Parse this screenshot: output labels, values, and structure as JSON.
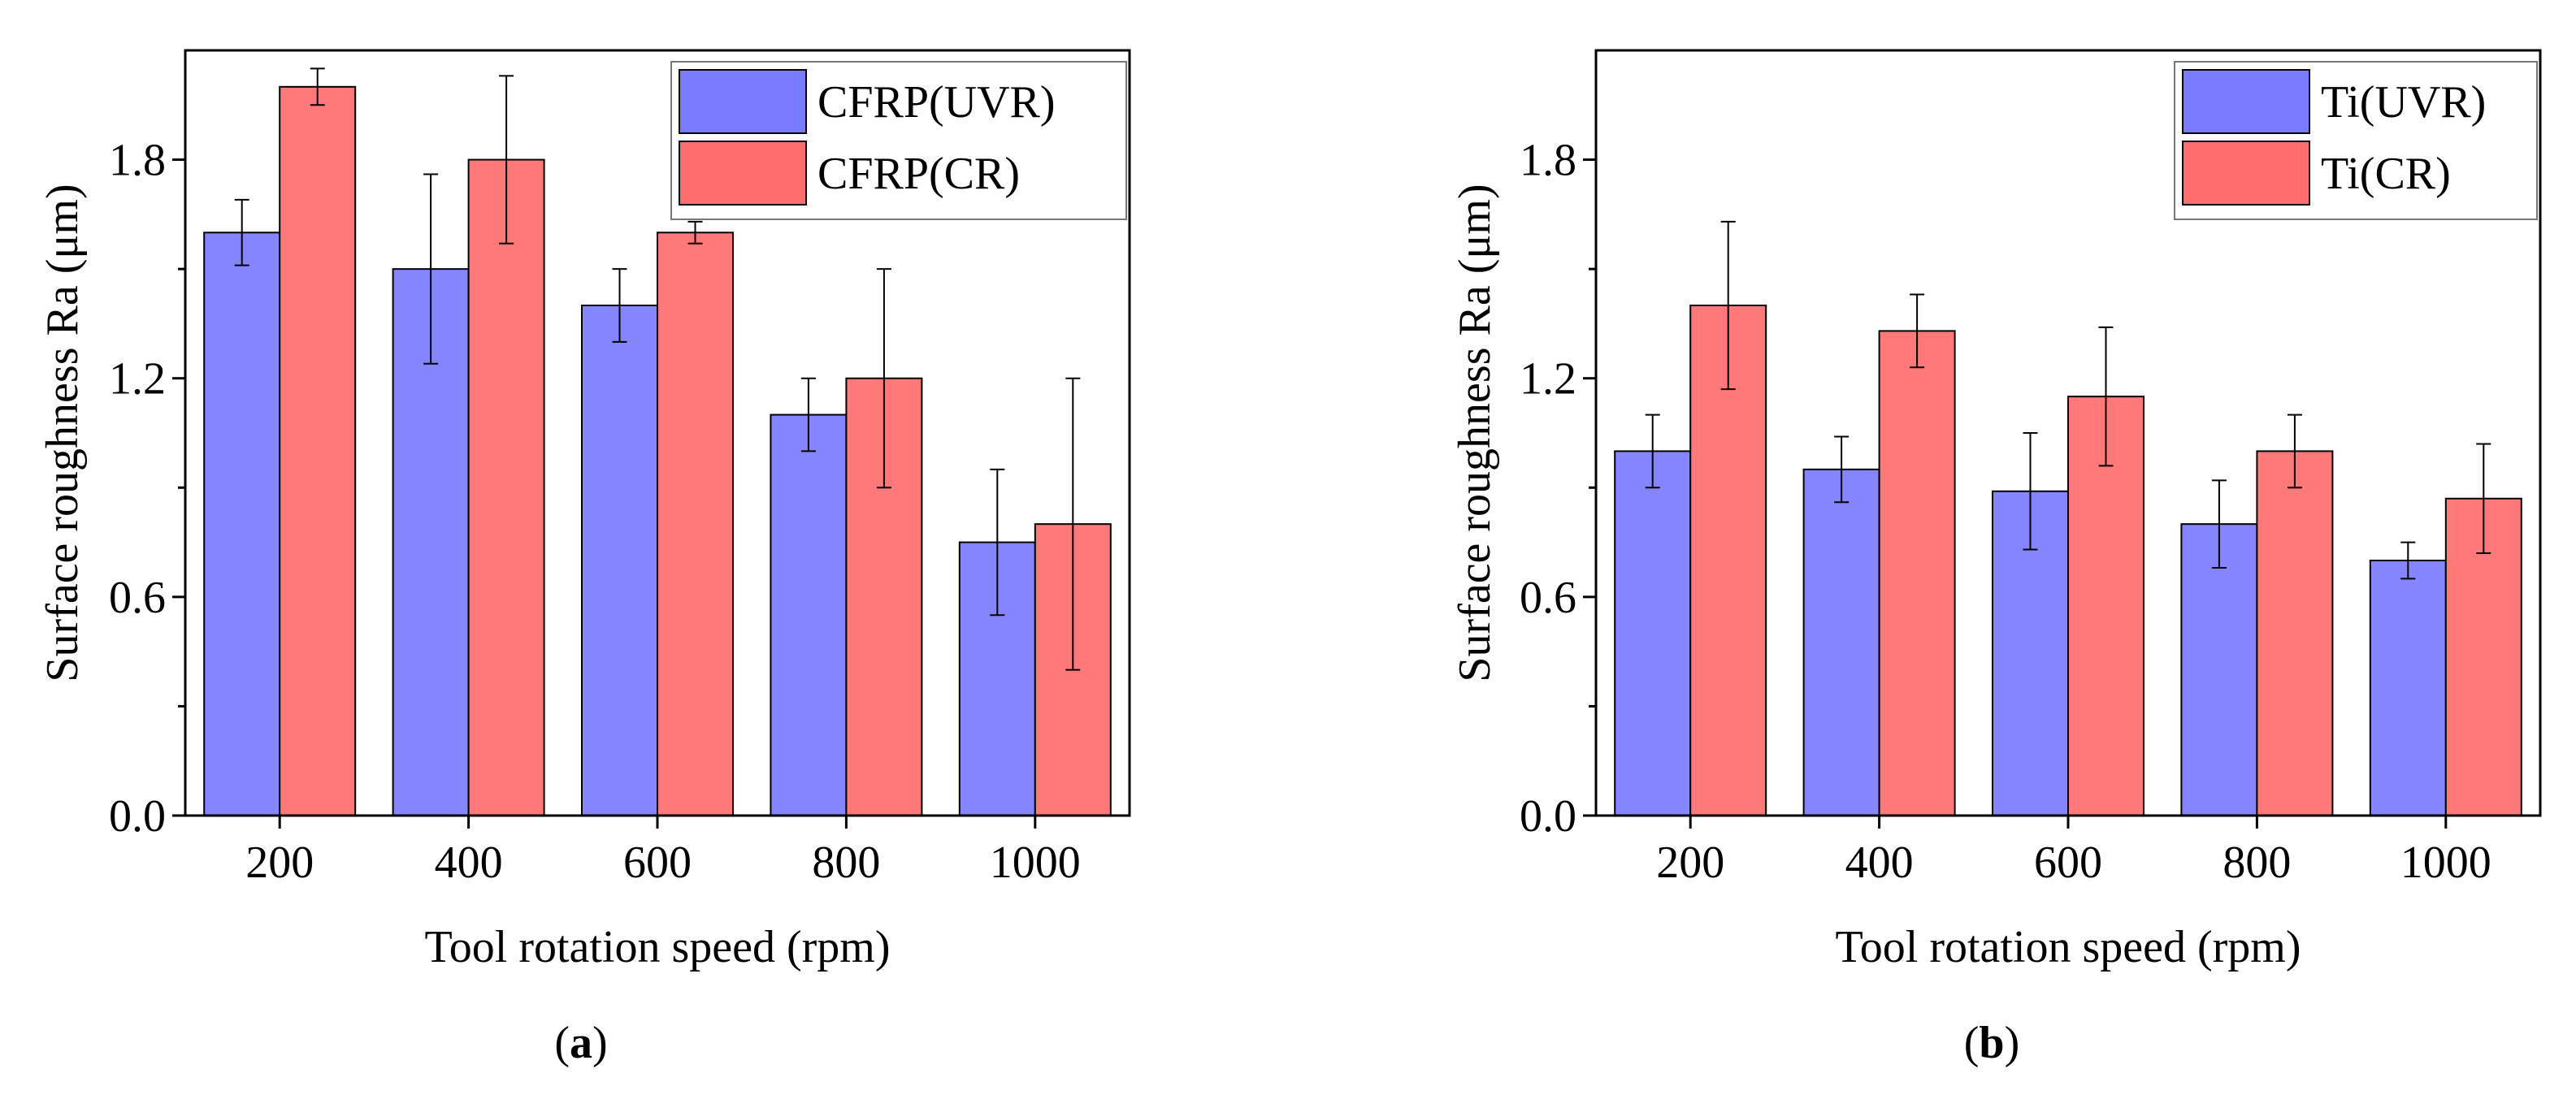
{
  "chart_data": [
    {
      "type": "bar",
      "panel": "(a)",
      "panel_letter": "a",
      "categories": [
        "200",
        "400",
        "600",
        "800",
        "1000"
      ],
      "series": [
        {
          "name": "CFRP(UVR)",
          "color": "#7b7bff",
          "values": [
            1.6,
            1.5,
            1.4,
            1.1,
            0.75
          ],
          "errors": [
            0.09,
            0.26,
            0.1,
            0.1,
            0.2
          ]
        },
        {
          "name": "CFRP(CR)",
          "color": "#ff6e6e",
          "values": [
            2.0,
            1.8,
            1.6,
            1.2,
            0.8
          ],
          "errors": [
            0.05,
            0.23,
            0.03,
            0.3,
            0.4
          ]
        }
      ],
      "xlabel": "Tool rotation speed (rpm)",
      "ylabel": "Surface roughness Ra (μm)",
      "ylim": [
        0,
        2.1
      ],
      "yticks": [
        0.0,
        0.6,
        1.2,
        1.8
      ],
      "ytick_labels": [
        "0.0",
        "0.6",
        "1.2",
        "1.8"
      ],
      "legend_position": "top-right"
    },
    {
      "type": "bar",
      "panel": "(b)",
      "panel_letter": "b",
      "categories": [
        "200",
        "400",
        "600",
        "800",
        "1000"
      ],
      "series": [
        {
          "name": "Ti(UVR)",
          "color": "#7b7bff",
          "values": [
            1.0,
            0.95,
            0.89,
            0.8,
            0.7
          ],
          "errors": [
            0.1,
            0.09,
            0.16,
            0.12,
            0.05
          ]
        },
        {
          "name": "Ti(CR)",
          "color": "#ff6e6e",
          "values": [
            1.4,
            1.33,
            1.15,
            1.0,
            0.87
          ],
          "errors": [
            0.23,
            0.1,
            0.19,
            0.1,
            0.15
          ]
        }
      ],
      "xlabel": "Tool rotation speed (rpm)",
      "ylabel": "Surface roughness Ra (μm)",
      "ylim": [
        0,
        2.1
      ],
      "yticks": [
        0.0,
        0.6,
        1.2,
        1.8
      ],
      "ytick_labels": [
        "0.0",
        "0.6",
        "1.2",
        "1.8"
      ],
      "legend_position": "top-right"
    }
  ]
}
